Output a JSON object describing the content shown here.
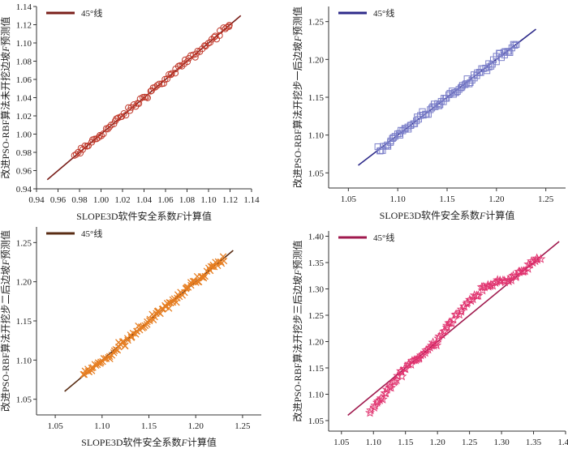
{
  "chart_data": [
    {
      "type": "scatter",
      "xlabel_prefix": "SLOPE3D软件安全系数",
      "xlabel_var": "F",
      "xlabel_suffix": "计算值",
      "ylabel_prefix": "改进PSO-RBF算法未开挖边坡",
      "ylabel_var": "F",
      "ylabel_suffix": "预测值",
      "xlim": [
        0.94,
        1.14
      ],
      "ylim": [
        0.94,
        1.14
      ],
      "xticks": [
        "0.94",
        "0.96",
        "0.98",
        "1.00",
        "1.02",
        "1.04",
        "1.06",
        "1.08",
        "1.10",
        "1.12",
        "1.14"
      ],
      "yticks": [
        "0.94",
        "0.96",
        "0.98",
        "1.00",
        "1.02",
        "1.04",
        "1.06",
        "1.08",
        "1.10",
        "1.12",
        "1.14"
      ],
      "legend": "45°线",
      "legend_position": "top-left",
      "line": [
        [
          0.95,
          0.95
        ],
        [
          1.13,
          1.13
        ]
      ],
      "marker": "circle",
      "color": "#c0392b",
      "line_color": "#7a1f1a",
      "n_points": 85,
      "x_range": [
        0.975,
        1.12
      ]
    },
    {
      "type": "scatter",
      "xlabel_prefix": "SLOPE3D软件安全系数",
      "xlabel_var": "F",
      "xlabel_suffix": "计算值",
      "ylabel_prefix": "改进PSO-RBF算法开挖步一后边坡",
      "ylabel_var": "F",
      "ylabel_suffix": "预测值",
      "xlim": [
        1.03,
        1.27
      ],
      "ylim": [
        1.03,
        1.27
      ],
      "xticks": [
        "1.05",
        "1.10",
        "1.15",
        "1.20",
        "1.25"
      ],
      "yticks": [
        "1.05",
        "1.10",
        "1.15",
        "1.20",
        "1.25"
      ],
      "legend": "45°线",
      "legend_position": "top-left",
      "line": [
        [
          1.06,
          1.06
        ],
        [
          1.24,
          1.24
        ]
      ],
      "marker": "square",
      "color": "#7b7fc9",
      "line_color": "#2e2b8a",
      "n_points": 95,
      "x_range": [
        1.08,
        1.22
      ]
    },
    {
      "type": "scatter",
      "xlabel_prefix": "SLOPE3D软件安全系数",
      "xlabel_var": "F",
      "xlabel_suffix": "计算值",
      "ylabel_prefix": "改进PSO-RBF算法开挖步二后边坡",
      "ylabel_var": "F",
      "ylabel_suffix": "预测值",
      "xlim": [
        1.03,
        1.27
      ],
      "ylim": [
        1.03,
        1.27
      ],
      "xticks": [
        "1.05",
        "1.10",
        "1.15",
        "1.20",
        "1.25"
      ],
      "yticks": [
        "1.05",
        "1.10",
        "1.15",
        "1.20",
        "1.25"
      ],
      "legend": "45°线",
      "legend_position": "top-left",
      "line": [
        [
          1.06,
          1.06
        ],
        [
          1.24,
          1.24
        ]
      ],
      "marker": "x",
      "color": "#e67e22",
      "line_color": "#5a2d14",
      "n_points": 110,
      "x_range": [
        1.08,
        1.23
      ]
    },
    {
      "type": "scatter",
      "xlabel_prefix": "SLOPE3D软件安全系数",
      "xlabel_var": "F",
      "xlabel_suffix": "计算值",
      "ylabel_prefix": "改进PSO-RBF算法开挖步三后边坡",
      "ylabel_var": "F",
      "ylabel_suffix": "预测值",
      "xlim": [
        1.03,
        1.4
      ],
      "ylim": [
        1.03,
        1.41
      ],
      "xticks": [
        "1.05",
        "1.10",
        "1.15",
        "1.20",
        "1.25",
        "1.30",
        "1.35",
        "1.40"
      ],
      "yticks": [
        "1.05",
        "1.10",
        "1.15",
        "1.20",
        "1.25",
        "1.30",
        "1.35",
        "1.40"
      ],
      "legend": "45°线",
      "legend_position": "top-left",
      "line": [
        [
          1.06,
          1.06
        ],
        [
          1.39,
          1.39
        ]
      ],
      "marker": "star",
      "color": "#e0336f",
      "line_color": "#a01a4e",
      "n_points": 110,
      "x_range": [
        1.095,
        1.36
      ]
    }
  ]
}
